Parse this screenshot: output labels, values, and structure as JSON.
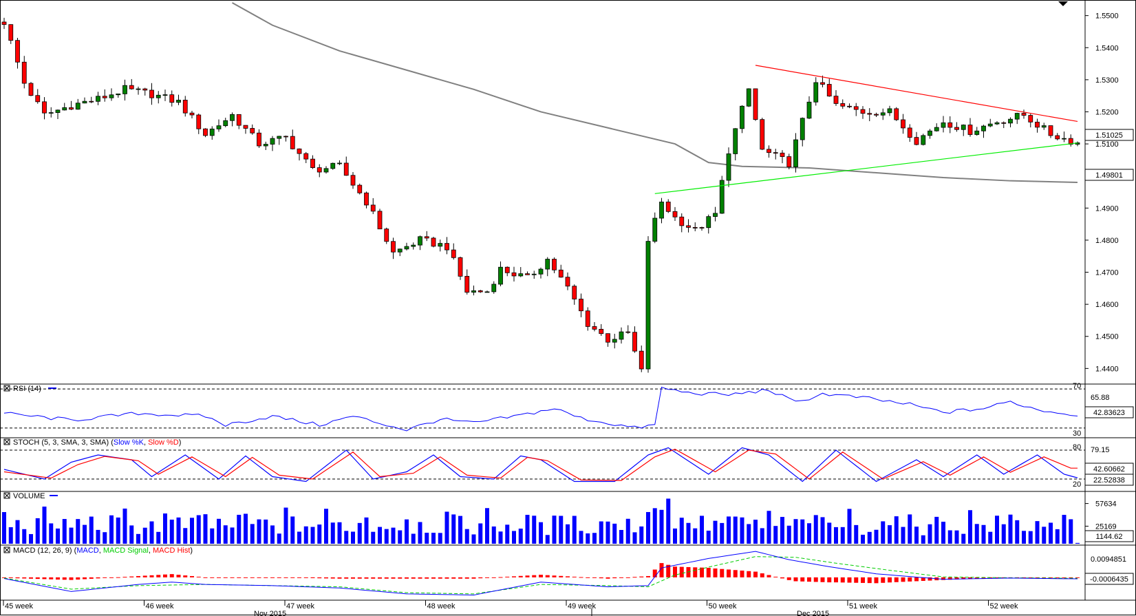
{
  "chart_data": [
    {
      "panel": "price",
      "type": "candlestick",
      "y_ticks": [
        "1.5500",
        "1.5400",
        "1.5300",
        "1.5200",
        "1.5100",
        "1.5000",
        "1.4900",
        "1.4800",
        "1.4700",
        "1.4600",
        "1.4500",
        "1.4400"
      ],
      "ylim": [
        1.436,
        1.554
      ],
      "last_price_label": "1.51025",
      "ma_label": "1.49801",
      "last_price": 1.51025,
      "ma_last": 1.49801,
      "trendlines": [
        {
          "color": "#ff0000",
          "from": [
            112,
            1.5345
          ],
          "to": [
            160,
            1.517
          ]
        },
        {
          "color": "#00ee00",
          "from": [
            97,
            1.4945
          ],
          "to": [
            160,
            1.5103
          ]
        }
      ],
      "moving_average": [
        [
          34,
          1.554
        ],
        [
          40,
          1.547
        ],
        [
          50,
          1.539
        ],
        [
          60,
          1.533
        ],
        [
          70,
          1.527
        ],
        [
          80,
          1.52
        ],
        [
          90,
          1.515
        ],
        [
          100,
          1.51
        ],
        [
          105,
          1.5042
        ],
        [
          110,
          1.503
        ],
        [
          120,
          1.5025
        ],
        [
          130,
          1.501
        ],
        [
          140,
          1.4995
        ],
        [
          150,
          1.4985
        ],
        [
          160,
          1.498
        ]
      ],
      "candle_anchors": [
        [
          0,
          1.548
        ],
        [
          3,
          1.529
        ],
        [
          6,
          1.519
        ],
        [
          10,
          1.522
        ],
        [
          14,
          1.524
        ],
        [
          18,
          1.527
        ],
        [
          22,
          1.5255
        ],
        [
          26,
          1.523
        ],
        [
          30,
          1.513
        ],
        [
          34,
          1.519
        ],
        [
          38,
          1.51
        ],
        [
          42,
          1.512
        ],
        [
          46,
          1.502
        ],
        [
          50,
          1.503
        ],
        [
          54,
          1.492
        ],
        [
          58,
          1.476
        ],
        [
          62,
          1.48
        ],
        [
          66,
          1.478
        ],
        [
          69,
          1.464
        ],
        [
          72,
          1.464
        ],
        [
          74,
          1.471
        ],
        [
          78,
          1.468
        ],
        [
          81,
          1.474
        ],
        [
          84,
          1.465
        ],
        [
          87,
          1.454
        ],
        [
          90,
          1.449
        ],
        [
          93,
          1.451
        ],
        [
          95,
          1.439
        ],
        [
          96,
          1.48
        ],
        [
          98,
          1.492
        ],
        [
          100,
          1.487
        ],
        [
          103,
          1.483
        ],
        [
          106,
          1.488
        ],
        [
          108,
          1.508
        ],
        [
          111,
          1.527
        ],
        [
          113,
          1.508
        ],
        [
          117,
          1.504
        ],
        [
          121,
          1.53
        ],
        [
          124,
          1.522
        ],
        [
          128,
          1.52
        ],
        [
          132,
          1.52
        ],
        [
          136,
          1.511
        ],
        [
          140,
          1.517
        ],
        [
          144,
          1.514
        ],
        [
          148,
          1.517
        ],
        [
          152,
          1.519
        ],
        [
          156,
          1.513
        ],
        [
          160,
          1.5103
        ]
      ],
      "n_candles": 161
    },
    {
      "panel": "rsi",
      "type": "line",
      "title": "RSI (14)",
      "levels": [
        70,
        30
      ],
      "level_labels": [
        "70",
        "30"
      ],
      "y_tick_top": "65.88",
      "value_label": "42.83623",
      "value": 42.83623,
      "ylim": [
        20,
        75
      ],
      "series": [
        {
          "color": "#0000ff",
          "points": [
            [
              0,
              45
            ],
            [
              10,
              38
            ],
            [
              20,
              45
            ],
            [
              30,
              42
            ],
            [
              33,
              33
            ],
            [
              40,
              42
            ],
            [
              47,
              33
            ],
            [
              52,
              42
            ],
            [
              60,
              28
            ],
            [
              65,
              39
            ],
            [
              70,
              35
            ],
            [
              77,
              43
            ],
            [
              82,
              50
            ],
            [
              86,
              40
            ],
            [
              94,
              30
            ],
            [
              97,
              33
            ],
            [
              98,
              71
            ],
            [
              102,
              66
            ],
            [
              108,
              64
            ],
            [
              114,
              69
            ],
            [
              118,
              56
            ],
            [
              122,
              65
            ],
            [
              128,
              61
            ],
            [
              135,
              54
            ],
            [
              140,
              46
            ],
            [
              146,
              50
            ],
            [
              150,
              57
            ],
            [
              154,
              49
            ],
            [
              160,
              42.8
            ]
          ]
        }
      ]
    },
    {
      "panel": "stoch",
      "type": "line",
      "title": "STOCH (5, 3, SMA, 3, SMA)",
      "legend": [
        "Slow %K",
        "Slow %D"
      ],
      "legend_colors": [
        "#0000ff",
        "#ff0000"
      ],
      "levels": [
        80,
        20
      ],
      "level_labels": [
        "80",
        "20"
      ],
      "y_tick_top": "79.15",
      "value_labels": [
        "42.60662",
        "22.52838"
      ],
      "ylim": [
        0,
        100
      ],
      "k_points": [
        [
          0,
          40
        ],
        [
          6,
          20
        ],
        [
          10,
          55
        ],
        [
          14,
          70
        ],
        [
          19,
          60
        ],
        [
          22,
          25
        ],
        [
          27,
          70
        ],
        [
          32,
          20
        ],
        [
          36,
          68
        ],
        [
          40,
          25
        ],
        [
          45,
          15
        ],
        [
          51,
          80
        ],
        [
          55,
          20
        ],
        [
          60,
          35
        ],
        [
          64,
          70
        ],
        [
          68,
          25
        ],
        [
          73,
          20
        ],
        [
          77,
          68
        ],
        [
          80,
          60
        ],
        [
          85,
          15
        ],
        [
          91,
          15
        ],
        [
          96,
          70
        ],
        [
          99,
          85
        ],
        [
          105,
          30
        ],
        [
          110,
          85
        ],
        [
          114,
          70
        ],
        [
          119,
          15
        ],
        [
          124,
          80
        ],
        [
          130,
          15
        ],
        [
          136,
          60
        ],
        [
          140,
          25
        ],
        [
          145,
          70
        ],
        [
          149,
          30
        ],
        [
          154,
          70
        ],
        [
          158,
          30
        ],
        [
          160,
          22.5
        ]
      ],
      "d_points": [
        [
          0,
          35
        ],
        [
          7,
          22
        ],
        [
          11,
          50
        ],
        [
          15,
          67
        ],
        [
          20,
          58
        ],
        [
          23,
          30
        ],
        [
          28,
          66
        ],
        [
          33,
          25
        ],
        [
          37,
          65
        ],
        [
          41,
          28
        ],
        [
          46,
          20
        ],
        [
          52,
          76
        ],
        [
          56,
          25
        ],
        [
          61,
          32
        ],
        [
          65,
          66
        ],
        [
          69,
          28
        ],
        [
          74,
          22
        ],
        [
          78,
          65
        ],
        [
          81,
          58
        ],
        [
          86,
          18
        ],
        [
          92,
          17
        ],
        [
          97,
          66
        ],
        [
          100,
          82
        ],
        [
          106,
          35
        ],
        [
          111,
          80
        ],
        [
          115,
          72
        ],
        [
          120,
          20
        ],
        [
          125,
          76
        ],
        [
          131,
          20
        ],
        [
          137,
          56
        ],
        [
          141,
          28
        ],
        [
          146,
          66
        ],
        [
          150,
          34
        ],
        [
          155,
          66
        ],
        [
          159,
          42.6
        ]
      ]
    },
    {
      "panel": "volume",
      "type": "bar",
      "title": "VOLUME",
      "legend_color": "#0000ff",
      "y_ticks": [
        "57634",
        "25169"
      ],
      "y_tick_values": [
        57634,
        25169
      ],
      "value_label": "1144.62",
      "value": 1144.62,
      "ylim": [
        0,
        73000
      ],
      "n_bars": 161
    },
    {
      "panel": "macd",
      "type": "line",
      "title": "MACD (12, 26, 9)",
      "legend": [
        "MACD",
        "MACD Signal",
        "MACD Hist"
      ],
      "legend_colors": [
        "#0000ff",
        "#00cc00",
        "#ff0000"
      ],
      "y_tick_top": "0.0094851",
      "value_label": "-0.0006435",
      "value": -0.0006435,
      "ylim": [
        -0.0085,
        0.0125
      ],
      "macd_points": [
        [
          0,
          -0.0005
        ],
        [
          10,
          -0.006
        ],
        [
          20,
          -0.003
        ],
        [
          25,
          -0.002
        ],
        [
          30,
          -0.003
        ],
        [
          40,
          -0.0035
        ],
        [
          50,
          -0.0045
        ],
        [
          60,
          -0.007
        ],
        [
          70,
          -0.0075
        ],
        [
          80,
          -0.002
        ],
        [
          85,
          -0.003
        ],
        [
          90,
          -0.004
        ],
        [
          96,
          -0.0035
        ],
        [
          98,
          0.004
        ],
        [
          105,
          0.008
        ],
        [
          112,
          0.011
        ],
        [
          117,
          0.0075
        ],
        [
          123,
          0.0045
        ],
        [
          130,
          0.0015
        ],
        [
          140,
          -0.0008
        ],
        [
          150,
          -0.0003
        ],
        [
          160,
          -0.00064
        ]
      ],
      "signal_points": [
        [
          0,
          -0.0003
        ],
        [
          10,
          -0.005
        ],
        [
          20,
          -0.0035
        ],
        [
          30,
          -0.003
        ],
        [
          40,
          -0.0035
        ],
        [
          50,
          -0.004
        ],
        [
          60,
          -0.0065
        ],
        [
          70,
          -0.007
        ],
        [
          80,
          -0.003
        ],
        [
          90,
          -0.0035
        ],
        [
          96,
          -0.004
        ],
        [
          100,
          0.001
        ],
        [
          106,
          0.005
        ],
        [
          112,
          0.0088
        ],
        [
          118,
          0.0085
        ],
        [
          124,
          0.006
        ],
        [
          132,
          0.003
        ],
        [
          140,
          0.0002
        ],
        [
          150,
          -0.0002
        ],
        [
          160,
          -0.0004
        ]
      ]
    }
  ],
  "x_axis": {
    "week_labels": [
      "45 week",
      "46 week",
      "47 week",
      "48 week",
      "49 week",
      "50 week",
      "51 week",
      "52 week"
    ],
    "month_labels": [
      "Nov 2015",
      "Dec 2015"
    ]
  }
}
